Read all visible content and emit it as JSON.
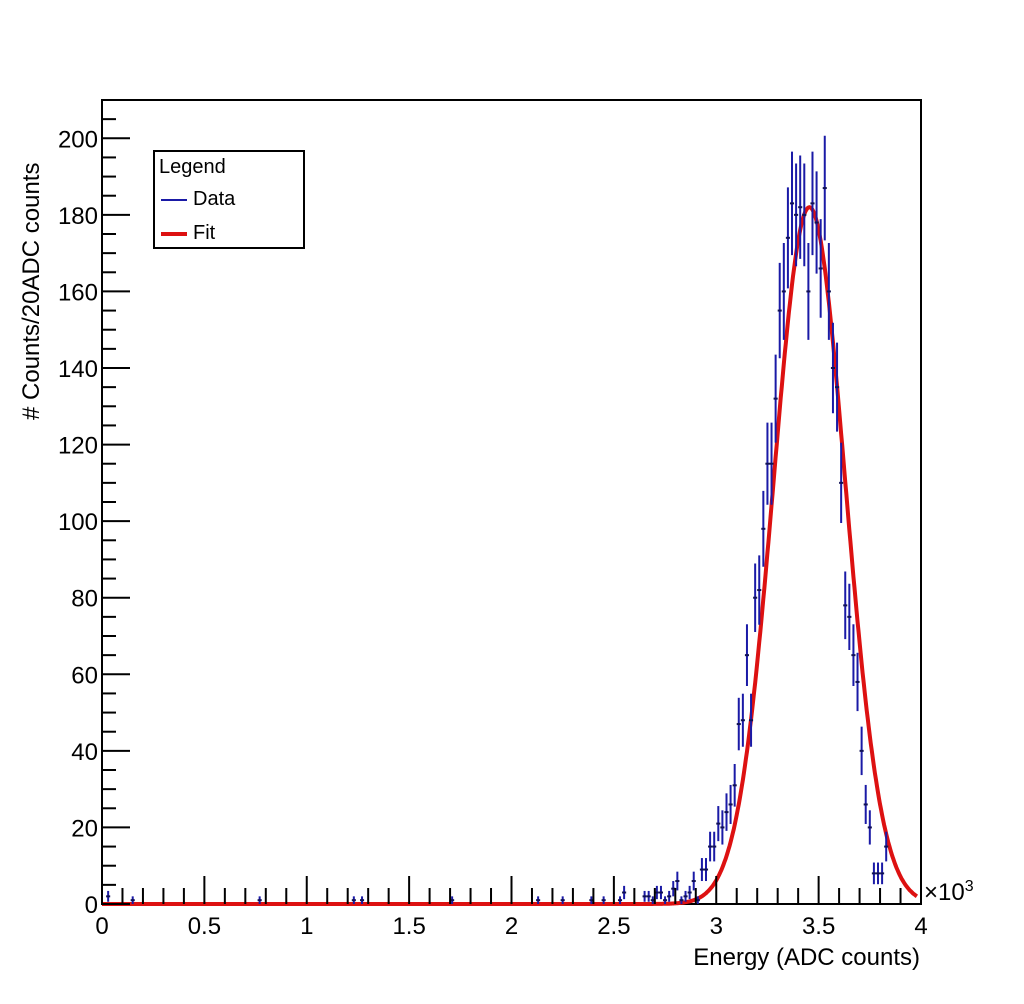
{
  "chart_data": {
    "type": "scatter",
    "title": "",
    "xlabel": "Energy (ADC counts)",
    "ylabel": "# Counts/20ADC counts",
    "x_multiplier_label": "×10",
    "x_multiplier_exp": "3",
    "xlim": [
      0,
      4000
    ],
    "ylim": [
      0,
      210
    ],
    "x_ticks": [
      "0",
      "0.5",
      "1",
      "1.5",
      "2",
      "2.5",
      "3",
      "3.5",
      "4"
    ],
    "y_ticks": [
      "0",
      "20",
      "40",
      "60",
      "80",
      "100",
      "120",
      "140",
      "160",
      "180",
      "200"
    ],
    "bin_width": 20,
    "legend": {
      "title": "Legend",
      "position": "upper-left",
      "entries": [
        {
          "label": "Data",
          "color": "#1a1aa6"
        },
        {
          "label": "Fit",
          "color": "#dd1111"
        }
      ]
    },
    "series": [
      {
        "name": "Data",
        "style": "errorbar",
        "color": "#1a1aa6",
        "x": [
          30,
          150,
          770,
          1230,
          1270,
          1710,
          2130,
          2250,
          2390,
          2450,
          2530,
          2550,
          2650,
          2670,
          2690,
          2710,
          2730,
          2750,
          2770,
          2790,
          2810,
          2830,
          2850,
          2870,
          2890,
          2910,
          2930,
          2950,
          2970,
          2990,
          3010,
          3030,
          3050,
          3070,
          3090,
          3110,
          3130,
          3150,
          3170,
          3190,
          3210,
          3230,
          3250,
          3270,
          3290,
          3310,
          3330,
          3350,
          3370,
          3390,
          3410,
          3430,
          3450,
          3470,
          3490,
          3510,
          3530,
          3550,
          3570,
          3590,
          3610,
          3630,
          3650,
          3670,
          3690,
          3710,
          3730,
          3750,
          3770,
          3790,
          3810,
          3830,
          3850,
          3870
        ],
        "y": [
          2,
          1,
          1,
          1,
          1,
          1,
          1,
          1,
          1,
          1,
          1,
          3,
          2,
          2,
          1,
          3,
          3,
          1,
          2,
          4,
          6,
          1,
          2,
          3,
          6,
          1,
          9,
          9,
          15,
          15,
          21,
          20,
          24,
          26,
          31,
          47,
          48,
          65,
          48,
          80,
          82,
          98,
          115,
          115,
          132,
          155,
          160,
          174,
          183,
          180,
          182,
          180,
          160,
          183,
          178,
          166,
          187,
          160,
          140,
          135,
          110,
          78,
          75,
          65,
          58,
          40,
          26,
          20,
          8,
          8,
          8,
          15,
          0,
          0
        ]
      },
      {
        "name": "Fit",
        "style": "line",
        "color": "#dd1111",
        "function": "gaussian",
        "amplitude": 182,
        "mean": 3455,
        "sigma": 175,
        "range": [
          0,
          3980
        ]
      }
    ],
    "grid": false
  }
}
